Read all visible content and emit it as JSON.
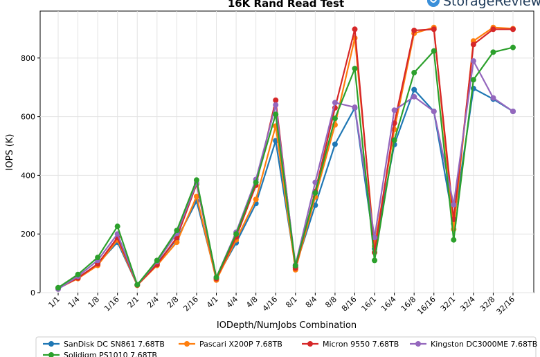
{
  "brand": {
    "logo_text": "StorageReview",
    "logo_color": "#1f3b5a",
    "logo_icon_color": "#3a8fd9"
  },
  "chart_data": {
    "type": "line",
    "title": "16K Rand Read Test",
    "xlabel": "IODepth/NumJobs Combination",
    "ylabel": "IOPS (K)",
    "ylim": [
      0,
      960
    ],
    "yticks": [
      0,
      200,
      400,
      600,
      800
    ],
    "grid": true,
    "legend_position": "bottom",
    "categories": [
      "1/1",
      "1/4",
      "1/8",
      "1/16",
      "2/1",
      "2/4",
      "2/8",
      "2/16",
      "4/1",
      "4/4",
      "4/8",
      "4/16",
      "8/1",
      "8/4",
      "8/8",
      "8/16",
      "16/1",
      "16/4",
      "16/8",
      "16/16",
      "32/1",
      "32/4",
      "32/8",
      "32/16"
    ],
    "series": [
      {
        "name": "SanDisk DC SN861 7.68TB",
        "color": "#1f77b4",
        "values": [
          14,
          50,
          98,
          172,
          26,
          100,
          182,
          312,
          50,
          170,
          304,
          518,
          88,
          298,
          506,
          630,
          150,
          505,
          692,
          618,
          236,
          696,
          660,
          618
        ]
      },
      {
        "name": "Pascari X200P 7.68TB",
        "color": "#ff7f0e",
        "values": [
          15,
          48,
          93,
          180,
          25,
          93,
          172,
          328,
          43,
          180,
          318,
          568,
          78,
          326,
          572,
          868,
          158,
          556,
          884,
          904,
          216,
          858,
          904,
          900
        ]
      },
      {
        "name": "Micron 9550 7.68TB",
        "color": "#d62728",
        "values": [
          15,
          50,
          98,
          188,
          26,
          96,
          188,
          370,
          48,
          190,
          366,
          656,
          84,
          345,
          630,
          898,
          137,
          578,
          894,
          898,
          250,
          846,
          898,
          898
        ]
      },
      {
        "name": "Kingston DC3000ME 7.68TB",
        "color": "#9467bd",
        "values": [
          12,
          56,
          110,
          200,
          27,
          106,
          202,
          374,
          52,
          206,
          386,
          640,
          94,
          376,
          648,
          632,
          188,
          622,
          668,
          618,
          300,
          790,
          664,
          618
        ]
      },
      {
        "name": "Solidigm PS1010 7.68TB",
        "color": "#2ca02c",
        "values": [
          17,
          62,
          120,
          226,
          27,
          110,
          212,
          384,
          52,
          200,
          376,
          608,
          92,
          340,
          594,
          764,
          110,
          520,
          750,
          824,
          180,
          726,
          820,
          836
        ]
      }
    ]
  }
}
